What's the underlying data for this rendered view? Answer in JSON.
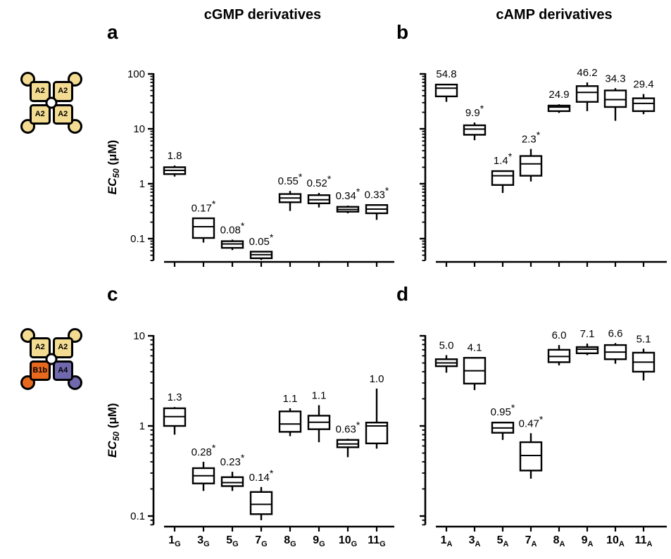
{
  "figure": {
    "column_titles": [
      "cGMP derivatives",
      "cAMP derivatives"
    ],
    "y_axis_title": {
      "prefix": "EC",
      "subscript": "50",
      "suffix": " (μM)"
    },
    "significance_marker": "*",
    "ink_color": "#000000",
    "background_color": "#ffffff"
  },
  "schematics": [
    {
      "name": "A2 homotetramer",
      "cells": [
        {
          "label": "A2",
          "fill": "#F3DC92"
        },
        {
          "label": "A2",
          "fill": "#F3DC92"
        },
        {
          "label": "A2",
          "fill": "#F3DC92"
        },
        {
          "label": "A2",
          "fill": "#F3DC92"
        }
      ],
      "corners": [
        "#F3DC92",
        "#F3DC92",
        "#F3DC92",
        "#F3DC92"
      ]
    },
    {
      "name": "A2-A2-B1b-A4 heterotetramer",
      "cells": [
        {
          "label": "A2",
          "fill": "#F3DC92"
        },
        {
          "label": "A2",
          "fill": "#F3DC92"
        },
        {
          "label": "B1b",
          "fill": "#E8691E"
        },
        {
          "label": "A4",
          "fill": "#7169AE"
        }
      ],
      "corners": [
        "#F3DC92",
        "#F3DC92",
        "#E8691E",
        "#7169AE"
      ]
    }
  ],
  "chart_data": [
    {
      "id": "a",
      "letter": "a",
      "type": "box",
      "scale": "log10",
      "ylim": [
        0.04,
        100
      ],
      "ylabel": "EC50 (μM)",
      "yticks": [
        {
          "v": 100,
          "label": "100"
        },
        {
          "v": 10,
          "label": "10"
        },
        {
          "v": 1,
          "label": "1"
        },
        {
          "v": 0.1,
          "label": "0.1"
        }
      ],
      "show_ylabel": true,
      "show_xlabels": false,
      "series": [
        {
          "category": "1",
          "sub": "G",
          "label": "1.8",
          "star": false,
          "whisker_low": 1.35,
          "q1": 1.5,
          "median": 1.75,
          "q3": 2.0,
          "whisker_high": 2.15
        },
        {
          "category": "3",
          "sub": "G",
          "label": "0.17",
          "star": true,
          "whisker_low": 0.085,
          "q1": 0.103,
          "median": 0.165,
          "q3": 0.235,
          "whisker_high": 0.24
        },
        {
          "category": "5",
          "sub": "G",
          "label": "0.08",
          "star": true,
          "whisker_low": 0.062,
          "q1": 0.068,
          "median": 0.08,
          "q3": 0.09,
          "whisker_high": 0.096
        },
        {
          "category": "7",
          "sub": "G",
          "label": "0.05",
          "star": true,
          "whisker_low": 0.041,
          "q1": 0.044,
          "median": 0.051,
          "q3": 0.058,
          "whisker_high": 0.059
        },
        {
          "category": "8",
          "sub": "G",
          "label": "0.55",
          "star": true,
          "whisker_low": 0.32,
          "q1": 0.46,
          "median": 0.55,
          "q3": 0.65,
          "whisker_high": 0.74
        },
        {
          "category": "9",
          "sub": "G",
          "label": "0.52",
          "star": true,
          "whisker_low": 0.37,
          "q1": 0.44,
          "median": 0.51,
          "q3": 0.62,
          "whisker_high": 0.68
        },
        {
          "category": "10",
          "sub": "G",
          "label": "0.34",
          "star": true,
          "whisker_low": 0.29,
          "q1": 0.31,
          "median": 0.34,
          "q3": 0.38,
          "whisker_high": 0.4
        },
        {
          "category": "11",
          "sub": "G",
          "label": "0.33",
          "star": true,
          "whisker_low": 0.22,
          "q1": 0.29,
          "median": 0.345,
          "q3": 0.41,
          "whisker_high": 0.42
        }
      ]
    },
    {
      "id": "b",
      "letter": "b",
      "type": "box",
      "scale": "log10",
      "ylim": [
        0.04,
        100
      ],
      "ylabel": "EC50 (μM)",
      "yticks": [
        {
          "v": 100,
          "label": ""
        },
        {
          "v": 10,
          "label": ""
        },
        {
          "v": 1,
          "label": ""
        },
        {
          "v": 0.1,
          "label": ""
        }
      ],
      "show_ylabel": false,
      "show_xlabels": false,
      "series": [
        {
          "category": "1",
          "sub": "A",
          "label": "54.8",
          "star": false,
          "whisker_low": 31,
          "q1": 39,
          "median": 55,
          "q3": 64,
          "whisker_high": 66
        },
        {
          "category": "3",
          "sub": "A",
          "label": "9.9",
          "star": true,
          "whisker_low": 6.2,
          "q1": 7.8,
          "median": 9.9,
          "q3": 11.6,
          "whisker_high": 13
        },
        {
          "category": "5",
          "sub": "A",
          "label": "1.4",
          "star": true,
          "whisker_low": 0.68,
          "q1": 0.95,
          "median": 1.4,
          "q3": 1.7,
          "whisker_high": 1.75
        },
        {
          "category": "7",
          "sub": "A",
          "label": "2.3",
          "star": true,
          "whisker_low": 1.1,
          "q1": 1.4,
          "median": 2.3,
          "q3": 3.2,
          "whisker_high": 4.3
        },
        {
          "category": "8",
          "sub": "A",
          "label": "24.9",
          "star": false,
          "whisker_low": 19.5,
          "q1": 21,
          "median": 24.9,
          "q3": 26.5,
          "whisker_high": 28
        },
        {
          "category": "9",
          "sub": "A",
          "label": "46.2",
          "star": false,
          "whisker_low": 21,
          "q1": 31,
          "median": 46,
          "q3": 60,
          "whisker_high": 70
        },
        {
          "category": "10",
          "sub": "A",
          "label": "34.3",
          "star": false,
          "whisker_low": 14,
          "q1": 25,
          "median": 34,
          "q3": 50,
          "whisker_high": 55
        },
        {
          "category": "11",
          "sub": "A",
          "label": "29.4",
          "star": false,
          "whisker_low": 18.5,
          "q1": 21,
          "median": 29,
          "q3": 36,
          "whisker_high": 43
        }
      ]
    },
    {
      "id": "c",
      "letter": "c",
      "type": "box",
      "scale": "log10",
      "ylim": [
        0.08,
        10
      ],
      "ylabel": "EC50 (μM)",
      "yticks": [
        {
          "v": 10,
          "label": "10"
        },
        {
          "v": 1,
          "label": "1"
        },
        {
          "v": 0.1,
          "label": "0.1"
        }
      ],
      "show_ylabel": true,
      "show_xlabels": true,
      "series": [
        {
          "category": "1",
          "sub": "G",
          "label": "1.3",
          "star": false,
          "whisker_low": 0.8,
          "q1": 1.0,
          "median": 1.27,
          "q3": 1.57,
          "whisker_high": 1.62
        },
        {
          "category": "3",
          "sub": "G",
          "label": "0.28",
          "star": true,
          "whisker_low": 0.19,
          "q1": 0.23,
          "median": 0.28,
          "q3": 0.34,
          "whisker_high": 0.4
        },
        {
          "category": "5",
          "sub": "G",
          "label": "0.23",
          "star": true,
          "whisker_low": 0.19,
          "q1": 0.215,
          "median": 0.235,
          "q3": 0.27,
          "whisker_high": 0.31
        },
        {
          "category": "7",
          "sub": "G",
          "label": "0.14",
          "star": true,
          "whisker_low": 0.09,
          "q1": 0.105,
          "median": 0.135,
          "q3": 0.185,
          "whisker_high": 0.21
        },
        {
          "category": "8",
          "sub": "G",
          "label": "1.1",
          "star": false,
          "whisker_low": 0.77,
          "q1": 0.86,
          "median": 1.05,
          "q3": 1.45,
          "whisker_high": 1.57
        },
        {
          "category": "9",
          "sub": "G",
          "label": "1.1",
          "star": false,
          "whisker_low": 0.66,
          "q1": 0.92,
          "median": 1.1,
          "q3": 1.3,
          "whisker_high": 1.7
        },
        {
          "category": "10",
          "sub": "G",
          "label": "0.63",
          "star": true,
          "whisker_low": 0.45,
          "q1": 0.58,
          "median": 0.63,
          "q3": 0.7,
          "whisker_high": 0.72
        },
        {
          "category": "11",
          "sub": "G",
          "label": "1.0",
          "star": false,
          "whisker_low": 0.56,
          "q1": 0.64,
          "median": 1.0,
          "q3": 1.09,
          "whisker_high": 2.6
        }
      ]
    },
    {
      "id": "d",
      "letter": "d",
      "type": "box",
      "scale": "log10",
      "ylim": [
        0.08,
        10
      ],
      "ylabel": "EC50 (μM)",
      "yticks": [
        {
          "v": 10,
          "label": ""
        },
        {
          "v": 1,
          "label": ""
        },
        {
          "v": 0.1,
          "label": ""
        }
      ],
      "show_ylabel": false,
      "show_xlabels": true,
      "series": [
        {
          "category": "1",
          "sub": "A",
          "label": "5.0",
          "star": false,
          "whisker_low": 3.9,
          "q1": 4.6,
          "median": 5.0,
          "q3": 5.5,
          "whisker_high": 6.1
        },
        {
          "category": "3",
          "sub": "A",
          "label": "4.1",
          "star": false,
          "whisker_low": 2.5,
          "q1": 2.95,
          "median": 4.1,
          "q3": 5.7,
          "whisker_high": 5.8
        },
        {
          "category": "5",
          "sub": "A",
          "label": "0.95",
          "star": true,
          "whisker_low": 0.7,
          "q1": 0.84,
          "median": 0.95,
          "q3": 1.09,
          "whisker_high": 1.11
        },
        {
          "category": "7",
          "sub": "A",
          "label": "0.47",
          "star": true,
          "whisker_low": 0.26,
          "q1": 0.32,
          "median": 0.47,
          "q3": 0.66,
          "whisker_high": 0.83
        },
        {
          "category": "8",
          "sub": "A",
          "label": "6.0",
          "star": false,
          "whisker_low": 4.7,
          "q1": 5.1,
          "median": 5.9,
          "q3": 7.0,
          "whisker_high": 7.9
        },
        {
          "category": "9",
          "sub": "A",
          "label": "7.1",
          "star": false,
          "whisker_low": 6.1,
          "q1": 6.4,
          "median": 7.1,
          "q3": 7.5,
          "whisker_high": 8.2
        },
        {
          "category": "10",
          "sub": "A",
          "label": "6.6",
          "star": false,
          "whisker_low": 4.9,
          "q1": 5.5,
          "median": 6.6,
          "q3": 7.9,
          "whisker_high": 8.3
        },
        {
          "category": "11",
          "sub": "A",
          "label": "5.1",
          "star": false,
          "whisker_low": 3.2,
          "q1": 4.0,
          "median": 5.1,
          "q3": 6.5,
          "whisker_high": 7.2
        }
      ]
    }
  ]
}
